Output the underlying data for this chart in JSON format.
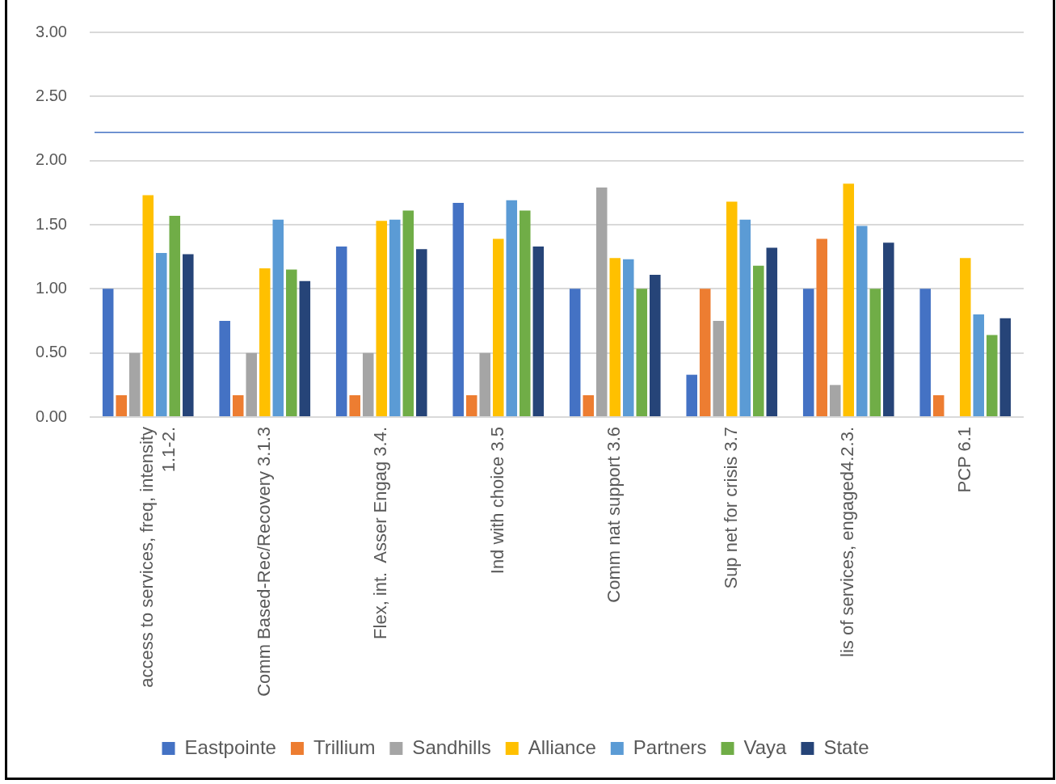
{
  "chart_data": {
    "type": "bar",
    "categories": [
      "access to services, freq, intensity 1.1-2.",
      "Comm Based-Rec/Recovery 3.1.3",
      "Flex, int.  Asser Engag 3.4.",
      "Ind with choice 3.5",
      "Comm nat support 3.6",
      "Sup net for crisis 3.7",
      "lis of services, engaged4.2.3.",
      "PCP 6.1"
    ],
    "series": [
      {
        "name": "Eastpointe",
        "color": "#4472c4",
        "values": [
          1.0,
          0.75,
          1.33,
          1.67,
          1.0,
          0.33,
          1.0,
          1.0
        ]
      },
      {
        "name": "Trillium",
        "color": "#ed7d31",
        "values": [
          0.17,
          0.17,
          0.17,
          0.17,
          0.17,
          1.0,
          1.39,
          0.17
        ]
      },
      {
        "name": "Sandhills",
        "color": "#a5a5a5",
        "values": [
          0.5,
          0.5,
          0.5,
          0.5,
          1.79,
          0.75,
          0.25,
          null
        ]
      },
      {
        "name": "Alliance",
        "color": "#ffc000",
        "values": [
          1.73,
          1.16,
          1.53,
          1.39,
          1.24,
          1.68,
          1.82,
          1.24
        ]
      },
      {
        "name": "Partners",
        "color": "#5b9bd5",
        "values": [
          1.28,
          1.54,
          1.54,
          1.69,
          1.23,
          1.54,
          1.49,
          0.8
        ]
      },
      {
        "name": "Vaya",
        "color": "#70ad47",
        "values": [
          1.57,
          1.15,
          1.61,
          1.61,
          1.0,
          1.18,
          1.0,
          0.64
        ]
      },
      {
        "name": "State",
        "color": "#264478",
        "values": [
          1.27,
          1.06,
          1.31,
          1.33,
          1.11,
          1.32,
          1.36,
          0.77
        ]
      }
    ],
    "ylim": [
      0,
      3
    ],
    "yticks": [
      {
        "value": 0,
        "label": "0.00"
      },
      {
        "value": 0.5,
        "label": "0.50"
      },
      {
        "value": 1,
        "label": "1.00"
      },
      {
        "value": 1.5,
        "label": "1.50"
      },
      {
        "value": 2,
        "label": "2.00"
      },
      {
        "value": 2.5,
        "label": "2.50"
      },
      {
        "value": 3,
        "label": "3.00"
      }
    ],
    "grid": "y",
    "legend": "bottom",
    "ref_lines": [
      {
        "axis": "y",
        "value": 2.22,
        "color": "#4472c4"
      }
    ]
  }
}
